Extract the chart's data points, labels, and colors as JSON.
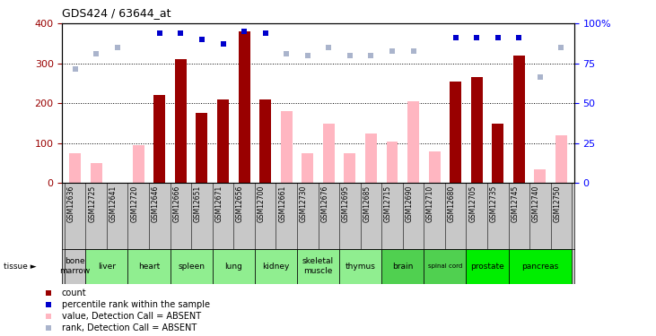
{
  "title": "GDS424 / 63644_at",
  "samples": [
    "GSM12636",
    "GSM12725",
    "GSM12641",
    "GSM12720",
    "GSM12646",
    "GSM12666",
    "GSM12651",
    "GSM12671",
    "GSM12656",
    "GSM12700",
    "GSM12661",
    "GSM12730",
    "GSM12676",
    "GSM12695",
    "GSM12685",
    "GSM12715",
    "GSM12690",
    "GSM12710",
    "GSM12680",
    "GSM12705",
    "GSM12735",
    "GSM12745",
    "GSM12740",
    "GSM12750"
  ],
  "red_bars": [
    0,
    0,
    0,
    0,
    220,
    310,
    175,
    210,
    380,
    210,
    0,
    0,
    0,
    0,
    0,
    0,
    0,
    0,
    255,
    265,
    150,
    320,
    0,
    0
  ],
  "pink_bars": [
    75,
    50,
    0,
    95,
    0,
    0,
    0,
    0,
    0,
    0,
    180,
    75,
    150,
    75,
    125,
    105,
    205,
    80,
    0,
    0,
    0,
    0,
    35,
    120
  ],
  "blue_dots": [
    0,
    0,
    0,
    0,
    375,
    375,
    360,
    350,
    380,
    375,
    0,
    0,
    0,
    0,
    0,
    0,
    0,
    0,
    365,
    365,
    365,
    365,
    0,
    0
  ],
  "lavender_dots": [
    285,
    325,
    340,
    0,
    0,
    0,
    0,
    0,
    0,
    0,
    325,
    320,
    340,
    320,
    320,
    330,
    330,
    0,
    0,
    0,
    0,
    0,
    265,
    340
  ],
  "tissue_spans": [
    {
      "name": "bone\nmarrow",
      "start": 0,
      "end": 1,
      "color": "#c8c8c8"
    },
    {
      "name": "liver",
      "start": 1,
      "end": 3,
      "color": "#90ee90"
    },
    {
      "name": "heart",
      "start": 3,
      "end": 5,
      "color": "#90ee90"
    },
    {
      "name": "spleen",
      "start": 5,
      "end": 7,
      "color": "#90ee90"
    },
    {
      "name": "lung",
      "start": 7,
      "end": 9,
      "color": "#90ee90"
    },
    {
      "name": "kidney",
      "start": 9,
      "end": 11,
      "color": "#90ee90"
    },
    {
      "name": "skeletal\nmuscle",
      "start": 11,
      "end": 13,
      "color": "#90ee90"
    },
    {
      "name": "thymus",
      "start": 13,
      "end": 15,
      "color": "#90ee90"
    },
    {
      "name": "brain",
      "start": 15,
      "end": 17,
      "color": "#50d050"
    },
    {
      "name": "spinal cord",
      "start": 17,
      "end": 19,
      "color": "#50d050"
    },
    {
      "name": "prostate",
      "start": 19,
      "end": 21,
      "color": "#00ee00"
    },
    {
      "name": "pancreas",
      "start": 21,
      "end": 24,
      "color": "#00ee00"
    }
  ],
  "red_color": "#990000",
  "pink_color": "#ffb6c1",
  "blue_color": "#0000cc",
  "lavender_color": "#aab4cc",
  "gsm_bg": "#c8c8c8",
  "right_ytick_labels": [
    "0",
    "25",
    "50",
    "75",
    "100%"
  ],
  "legend_items": [
    {
      "color": "#990000",
      "label": "count"
    },
    {
      "color": "#0000cc",
      "label": "percentile rank within the sample"
    },
    {
      "color": "#ffb6c1",
      "label": "value, Detection Call = ABSENT"
    },
    {
      "color": "#aab4cc",
      "label": "rank, Detection Call = ABSENT"
    }
  ]
}
